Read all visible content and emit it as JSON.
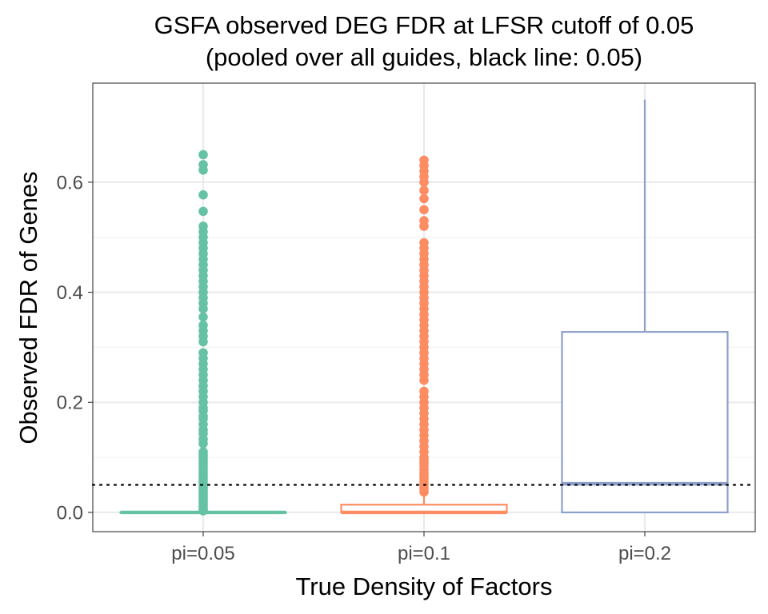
{
  "chart_data": {
    "type": "box",
    "title": "GSFA observed DEG FDR at LFSR cutoff of 0.05",
    "subtitle": "(pooled over all guides, black line: 0.05)",
    "xlabel": "True Density of Factors",
    "ylabel": "Observed FDR of Genes",
    "categories": [
      "pi=0.05",
      "pi=0.1",
      "pi=0.2"
    ],
    "yticks": [
      "0.0",
      "0.2",
      "0.4",
      "0.6"
    ],
    "ylim": [
      -0.035,
      0.78
    ],
    "grid": true,
    "reference_line": {
      "value": 0.05,
      "style": "dotted",
      "color": "#000000"
    },
    "colors": [
      "#66c2a5",
      "#fc8d62",
      "#8da0cb"
    ],
    "boxes": [
      {
        "category": "pi=0.05",
        "min": 0.0,
        "q1": 0.0,
        "median": 0.0,
        "q3": 0.0,
        "max": 0.0,
        "outliers": [
          0.003,
          0.006,
          0.01,
          0.014,
          0.018,
          0.022,
          0.026,
          0.03,
          0.034,
          0.038,
          0.042,
          0.046,
          0.05,
          0.055,
          0.06,
          0.065,
          0.07,
          0.075,
          0.08,
          0.085,
          0.09,
          0.095,
          0.1,
          0.105,
          0.11,
          0.125,
          0.133,
          0.143,
          0.15,
          0.16,
          0.17,
          0.175,
          0.185,
          0.19,
          0.2,
          0.21,
          0.22,
          0.23,
          0.24,
          0.25,
          0.26,
          0.27,
          0.28,
          0.29,
          0.31,
          0.32,
          0.33,
          0.34,
          0.355,
          0.37,
          0.38,
          0.39,
          0.4,
          0.41,
          0.42,
          0.43,
          0.44,
          0.45,
          0.46,
          0.47,
          0.48,
          0.49,
          0.5,
          0.51,
          0.52,
          0.547,
          0.577,
          0.622,
          0.632,
          0.65
        ]
      },
      {
        "category": "pi=0.1",
        "min": 0.0,
        "q1": 0.0,
        "median": 0.0,
        "q3": 0.014,
        "max": 0.035,
        "outliers": [
          0.037,
          0.042,
          0.047,
          0.052,
          0.057,
          0.062,
          0.067,
          0.072,
          0.078,
          0.085,
          0.09,
          0.095,
          0.1,
          0.11,
          0.12,
          0.13,
          0.14,
          0.15,
          0.16,
          0.17,
          0.18,
          0.19,
          0.2,
          0.21,
          0.22,
          0.24,
          0.25,
          0.26,
          0.27,
          0.28,
          0.29,
          0.3,
          0.31,
          0.32,
          0.33,
          0.34,
          0.35,
          0.36,
          0.37,
          0.38,
          0.39,
          0.4,
          0.41,
          0.42,
          0.43,
          0.44,
          0.45,
          0.46,
          0.47,
          0.48,
          0.49,
          0.52,
          0.53,
          0.55,
          0.57,
          0.585,
          0.6,
          0.61,
          0.62,
          0.63,
          0.64
        ]
      },
      {
        "category": "pi=0.2",
        "min": 0.0,
        "q1": 0.0,
        "median": 0.052,
        "q3": 0.328,
        "max": 0.75,
        "outliers": []
      }
    ]
  }
}
